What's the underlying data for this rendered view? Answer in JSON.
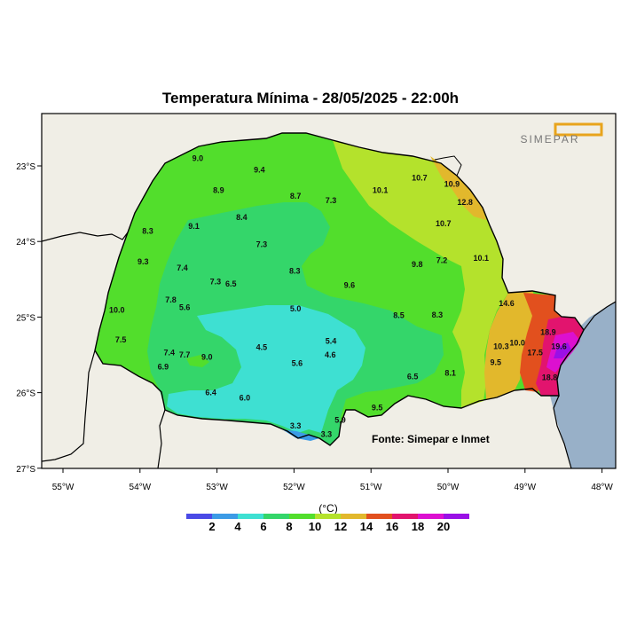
{
  "title": "Temperatura Mínima - 28/05/2025 - 22:00h",
  "logo_text": "SIMEPAR",
  "source": "Fonte: Simepar e Inmet",
  "legend": {
    "unit": "(°C)",
    "ticks": [
      "2",
      "4",
      "6",
      "8",
      "10",
      "12",
      "14",
      "16",
      "18",
      "20"
    ],
    "colors": [
      "#4a4ae6",
      "#3c9be6",
      "#3ee0d2",
      "#34d66a",
      "#52de2c",
      "#b4e22c",
      "#e2b82c",
      "#e2501e",
      "#e2146e",
      "#dc10d0",
      "#9a10e6"
    ]
  },
  "axes": {
    "lon_labels": [
      "55°W",
      "54°W",
      "53°W",
      "52°W",
      "51°W",
      "50°W",
      "49°W",
      "48°W"
    ],
    "lat_labels": [
      "23°S",
      "24°S",
      "25°S",
      "26°S",
      "27°S"
    ]
  },
  "map_colors": {
    "background": "#f0eee6",
    "ocean": "#98b0c8",
    "band_6_8": "#3ee0d2",
    "band_8_10": "#34d66a",
    "band_10_12": "#52de2c",
    "band_12_14": "#b4e22c",
    "band_14_16": "#e2b82c",
    "band_16_18": "#e2501e",
    "band_18_20": "#e2146e",
    "band_20_22": "#dc10d0",
    "band_22_plus": "#9a10e6"
  },
  "stations": [
    {
      "value": "9.0",
      "lon": -53.25,
      "lat": -22.9
    },
    {
      "value": "9.4",
      "lon": -52.45,
      "lat": -23.05
    },
    {
      "value": "8.9",
      "lon": -52.98,
      "lat": -23.32
    },
    {
      "value": "8.7",
      "lon": -51.98,
      "lat": -23.4
    },
    {
      "value": "7.3",
      "lon": -51.52,
      "lat": -23.46
    },
    {
      "value": "10.1",
      "lon": -50.88,
      "lat": -23.32
    },
    {
      "value": "10.7",
      "lon": -50.37,
      "lat": -23.16
    },
    {
      "value": "10.9",
      "lon": -49.95,
      "lat": -23.24
    },
    {
      "value": "12.8",
      "lon": -49.78,
      "lat": -23.48
    },
    {
      "value": "10.7",
      "lon": -50.06,
      "lat": -23.76
    },
    {
      "value": "8.3",
      "lon": -53.9,
      "lat": -23.86
    },
    {
      "value": "9.1",
      "lon": -53.3,
      "lat": -23.8
    },
    {
      "value": "8.4",
      "lon": -52.68,
      "lat": -23.68
    },
    {
      "value": "7.3",
      "lon": -52.42,
      "lat": -24.04
    },
    {
      "value": "9.3",
      "lon": -53.96,
      "lat": -24.27
    },
    {
      "value": "7.4",
      "lon": -53.45,
      "lat": -24.35
    },
    {
      "value": "8.3",
      "lon": -51.99,
      "lat": -24.39
    },
    {
      "value": "9.8",
      "lon": -50.4,
      "lat": -24.3
    },
    {
      "value": "7.2",
      "lon": -50.08,
      "lat": -24.25
    },
    {
      "value": "10.1",
      "lon": -49.57,
      "lat": -24.22
    },
    {
      "value": "7.3",
      "lon": -53.02,
      "lat": -24.53
    },
    {
      "value": "6.5",
      "lon": -52.82,
      "lat": -24.56
    },
    {
      "value": "9.6",
      "lon": -51.28,
      "lat": -24.58
    },
    {
      "value": "7.8",
      "lon": -53.6,
      "lat": -24.77
    },
    {
      "value": "5.6",
      "lon": -53.42,
      "lat": -24.87
    },
    {
      "value": "10.0",
      "lon": -54.3,
      "lat": -24.91
    },
    {
      "value": "5.0",
      "lon": -51.98,
      "lat": -24.89
    },
    {
      "value": "8.5",
      "lon": -50.64,
      "lat": -24.98
    },
    {
      "value": "8.3",
      "lon": -50.14,
      "lat": -24.97
    },
    {
      "value": "14.6",
      "lon": -49.24,
      "lat": -24.82
    },
    {
      "value": "7.5",
      "lon": -54.25,
      "lat": -25.3
    },
    {
      "value": "5.4",
      "lon": -51.52,
      "lat": -25.32
    },
    {
      "value": "18.9",
      "lon": -48.7,
      "lat": -25.2
    },
    {
      "value": "10.0",
      "lon": -49.1,
      "lat": -25.34
    },
    {
      "value": "10.3",
      "lon": -49.31,
      "lat": -25.39
    },
    {
      "value": "4.5",
      "lon": -52.42,
      "lat": -25.4
    },
    {
      "value": "19.6",
      "lon": -48.56,
      "lat": -25.39
    },
    {
      "value": "17.5",
      "lon": -48.87,
      "lat": -25.47
    },
    {
      "value": "4.6",
      "lon": -51.53,
      "lat": -25.5
    },
    {
      "value": "7.4",
      "lon": -53.62,
      "lat": -25.47
    },
    {
      "value": "7.7",
      "lon": -53.42,
      "lat": -25.5
    },
    {
      "value": "9.0",
      "lon": -53.13,
      "lat": -25.53
    },
    {
      "value": "9.5",
      "lon": -49.38,
      "lat": -25.6
    },
    {
      "value": "5.6",
      "lon": -51.96,
      "lat": -25.61
    },
    {
      "value": "6.9",
      "lon": -53.7,
      "lat": -25.66
    },
    {
      "value": "8.1",
      "lon": -49.97,
      "lat": -25.74
    },
    {
      "value": "6.5",
      "lon": -50.46,
      "lat": -25.79
    },
    {
      "value": "18.8",
      "lon": -48.68,
      "lat": -25.8
    },
    {
      "value": "6.4",
      "lon": -53.08,
      "lat": -26.0
    },
    {
      "value": "6.0",
      "lon": -52.64,
      "lat": -26.07
    },
    {
      "value": "9.5",
      "lon": -50.92,
      "lat": -26.2
    },
    {
      "value": "5.9",
      "lon": -51.4,
      "lat": -26.36
    },
    {
      "value": "3.3",
      "lon": -51.98,
      "lat": -26.44
    },
    {
      "value": "3.3",
      "lon": -51.58,
      "lat": -26.55
    }
  ]
}
